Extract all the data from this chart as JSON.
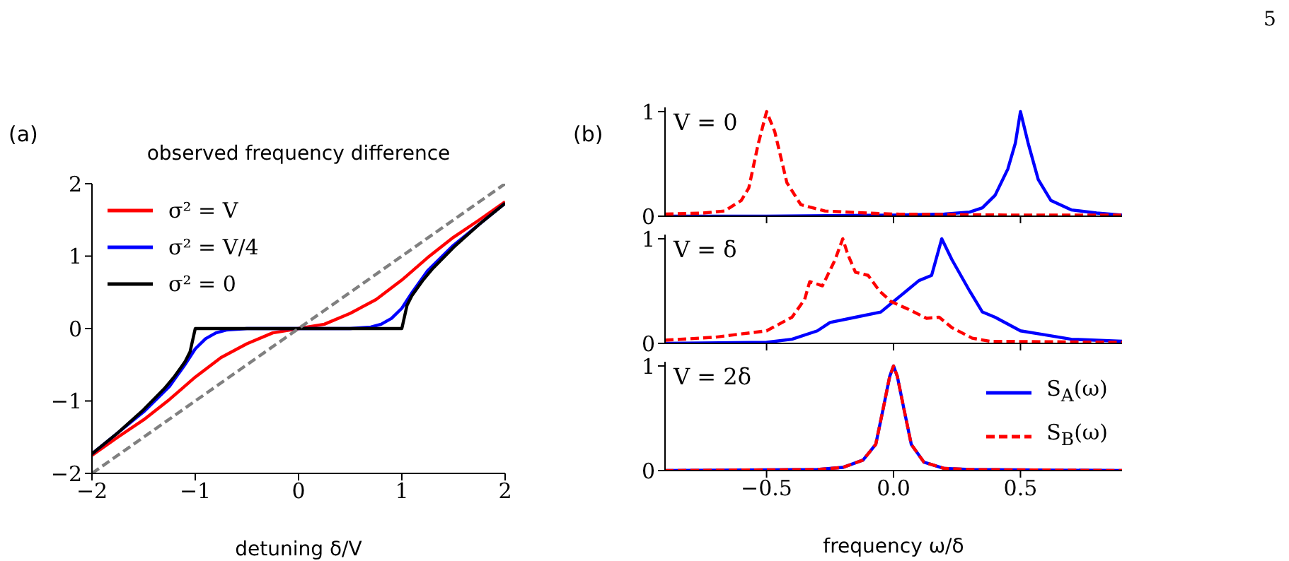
{
  "chart_data": [
    {
      "type": "line",
      "title": "observed frequency difference",
      "xlabel": "detuning δ/V",
      "annotations": [
        "(a)",
        "5"
      ],
      "xlim": [
        -2,
        2
      ],
      "ylim": [
        -2,
        2
      ],
      "xticks": [
        -2,
        -1,
        0,
        1,
        2
      ],
      "yticks": [
        -2,
        -1,
        0,
        1,
        2
      ],
      "legend": "top left",
      "grid": false,
      "series": [
        {
          "name": "σ² = V",
          "color": "#ff0000",
          "x": [
            -2,
            -1.75,
            -1.5,
            -1.25,
            -1,
            -0.75,
            -0.5,
            -0.25,
            0,
            0.25,
            0.5,
            0.75,
            1,
            1.25,
            1.5,
            1.75,
            2
          ],
          "values": [
            -1.75,
            -1.5,
            -1.26,
            -0.98,
            -0.67,
            -0.4,
            -0.21,
            -0.06,
            0,
            0.06,
            0.21,
            0.4,
            0.67,
            0.98,
            1.26,
            1.5,
            1.75
          ]
        },
        {
          "name": "σ² = V/4",
          "color": "#0000ff",
          "x": [
            -2,
            -1.75,
            -1.5,
            -1.25,
            -1.1,
            -1,
            -0.9,
            -0.8,
            -0.7,
            -0.6,
            -0.5,
            0,
            0.5,
            0.6,
            0.7,
            0.8,
            0.9,
            1,
            1.1,
            1.25,
            1.5,
            1.75,
            2
          ],
          "values": [
            -1.73,
            -1.44,
            -1.15,
            -0.8,
            -0.5,
            -0.28,
            -0.14,
            -0.06,
            -0.02,
            -0.01,
            0,
            0,
            0,
            0.01,
            0.02,
            0.06,
            0.14,
            0.28,
            0.5,
            0.8,
            1.15,
            1.44,
            1.73
          ]
        },
        {
          "name": "σ² = 0",
          "color": "#000000",
          "x": [
            -2,
            -1.75,
            -1.5,
            -1.3,
            -1.2,
            -1.1,
            -1.05,
            -1,
            1,
            1.05,
            1.1,
            1.2,
            1.3,
            1.5,
            1.75,
            2
          ],
          "values": [
            -1.73,
            -1.44,
            -1.12,
            -0.83,
            -0.66,
            -0.46,
            -0.32,
            0,
            0,
            0.32,
            0.46,
            0.66,
            0.83,
            1.12,
            1.44,
            1.73
          ]
        },
        {
          "color": "#808080",
          "line_style": "dashed",
          "x": [
            -2,
            2
          ],
          "values": [
            -2,
            2
          ]
        }
      ]
    },
    {
      "type": "line",
      "annotations": [
        "(b)",
        "V = 0"
      ],
      "xlim": [
        -0.9,
        0.9
      ],
      "ylim": [
        0,
        1.04
      ],
      "xticks": [
        {
          "value": -0.5,
          "label": null
        },
        {
          "value": 0,
          "label": null
        },
        {
          "value": 0.5,
          "label": null
        }
      ],
      "yticks": [
        0,
        1
      ],
      "tick_labels": "y",
      "grid": false,
      "series": [
        {
          "color": "#0000ff",
          "x": [
            -0.9,
            -0.5,
            0,
            0.2,
            0.3,
            0.35,
            0.4,
            0.45,
            0.48,
            0.5,
            0.53,
            0.57,
            0.62,
            0.7,
            0.8,
            0.9
          ],
          "values": [
            0,
            0,
            0.01,
            0.02,
            0.04,
            0.08,
            0.2,
            0.45,
            0.7,
            1.0,
            0.7,
            0.35,
            0.15,
            0.06,
            0.03,
            0.01
          ]
        },
        {
          "color": "#ff0000",
          "line_style": "dashed",
          "x": [
            -0.9,
            -0.75,
            -0.665,
            -0.6,
            -0.57,
            -0.534,
            -0.5,
            -0.468,
            -0.42,
            -0.365,
            -0.27,
            -0.1,
            0,
            0.5,
            0.9
          ],
          "values": [
            0.02,
            0.03,
            0.05,
            0.15,
            0.27,
            0.68,
            1.0,
            0.81,
            0.32,
            0.11,
            0.05,
            0.03,
            0.02,
            0.01,
            0.01
          ]
        }
      ]
    },
    {
      "type": "line",
      "annotations": [
        "V = δ"
      ],
      "xlim": [
        -0.9,
        0.9
      ],
      "ylim": [
        0,
        1.04
      ],
      "xticks": [
        {
          "value": -0.5,
          "label": null
        },
        {
          "value": 0,
          "label": null
        },
        {
          "value": 0.5,
          "label": null
        }
      ],
      "yticks": [
        0,
        1
      ],
      "tick_labels": "y",
      "grid": false,
      "series": [
        {
          "color": "#0000ff",
          "x": [
            -0.9,
            -0.5,
            -0.4,
            -0.3,
            -0.25,
            -0.15,
            -0.05,
            0,
            0.05,
            0.1,
            0.15,
            0.19,
            0.23,
            0.3,
            0.35,
            0.4,
            0.5,
            0.6,
            0.7,
            0.9
          ],
          "values": [
            0,
            0.01,
            0.04,
            0.12,
            0.2,
            0.25,
            0.3,
            0.4,
            0.5,
            0.6,
            0.65,
            1.0,
            0.8,
            0.5,
            0.3,
            0.25,
            0.12,
            0.08,
            0.04,
            0.02
          ]
        },
        {
          "color": "#ff0000",
          "line_style": "dashed",
          "x": [
            -0.9,
            -0.7,
            -0.5,
            -0.4,
            -0.35,
            -0.33,
            -0.28,
            -0.23,
            -0.2,
            -0.18,
            -0.15,
            -0.1,
            -0.055,
            -0.01,
            0.055,
            0.13,
            0.18,
            0.23,
            0.31,
            0.38,
            0.9
          ],
          "values": [
            0.03,
            0.06,
            0.12,
            0.25,
            0.42,
            0.59,
            0.55,
            0.8,
            1.0,
            0.85,
            0.68,
            0.65,
            0.5,
            0.4,
            0.33,
            0.24,
            0.25,
            0.15,
            0.05,
            0.02,
            0.01
          ]
        }
      ]
    },
    {
      "type": "line",
      "xlabel": "frequency ω/δ",
      "annotations": [
        "V = 2δ"
      ],
      "xlim": [
        -0.9,
        0.9
      ],
      "ylim": [
        0,
        1.04
      ],
      "xticks": [
        {
          "value": -0.5,
          "label": "−0.5"
        },
        {
          "value": 0,
          "label": "0.0"
        },
        {
          "value": 0.5,
          "label": "0.5"
        }
      ],
      "yticks": [
        0,
        1
      ],
      "legend": "top right",
      "grid": false,
      "series": [
        {
          "name": "S$_{A}$(ω)",
          "color": "#0000ff",
          "x": [
            -0.9,
            -0.3,
            -0.2,
            -0.12,
            -0.07,
            -0.04,
            -0.015,
            0,
            0.015,
            0.04,
            0.07,
            0.12,
            0.2,
            0.3,
            0.9
          ],
          "values": [
            0,
            0.01,
            0.03,
            0.1,
            0.25,
            0.6,
            0.9,
            1.0,
            0.9,
            0.6,
            0.25,
            0.08,
            0.02,
            0.01,
            0
          ]
        },
        {
          "name": "S$_{B}$(ω)",
          "color": "#ff0000",
          "line_style": "dashed",
          "x": [
            -0.9,
            -0.3,
            -0.2,
            -0.12,
            -0.07,
            -0.04,
            -0.015,
            0,
            0.015,
            0.04,
            0.07,
            0.12,
            0.2,
            0.3,
            0.9
          ],
          "values": [
            0,
            0.01,
            0.03,
            0.1,
            0.25,
            0.6,
            0.9,
            1.0,
            0.9,
            0.6,
            0.25,
            0.08,
            0.02,
            0.01,
            0
          ]
        }
      ]
    }
  ]
}
